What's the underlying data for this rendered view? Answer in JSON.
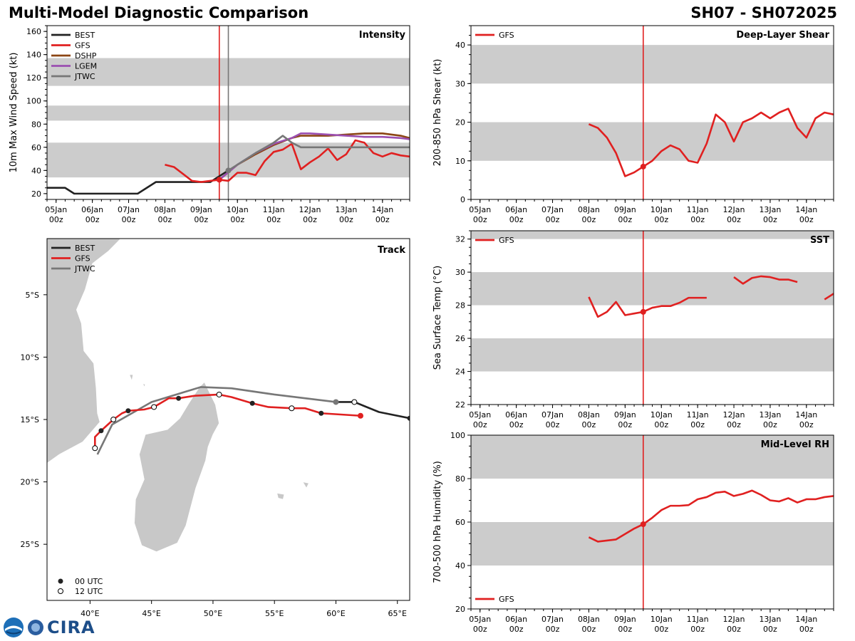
{
  "header": {
    "title": "Multi-Model Diagnostic Comparison",
    "storm_id": "SH07 - SH072025"
  },
  "colors": {
    "BEST": "#222222",
    "GFS": "#e02020",
    "DSHP": "#8b4513",
    "LGEM": "#9b4fb0",
    "JTWC": "#777777",
    "band": "#cccccc",
    "land": "#c8c8c8"
  },
  "logo": {
    "text": "CIRA",
    "icon": "noaa-logo-icon"
  },
  "time_ticks": [
    {
      "d": "05Jan",
      "h": "00z"
    },
    {
      "d": "06Jan",
      "h": "00z"
    },
    {
      "d": "07Jan",
      "h": "00z"
    },
    {
      "d": "08Jan",
      "h": "00z"
    },
    {
      "d": "09Jan",
      "h": "00z"
    },
    {
      "d": "10Jan",
      "h": "00z"
    },
    {
      "d": "11Jan",
      "h": "00z"
    },
    {
      "d": "12Jan",
      "h": "00z"
    },
    {
      "d": "13Jan",
      "h": "00z"
    },
    {
      "d": "14Jan",
      "h": "00z"
    }
  ],
  "chart_data": [
    {
      "id": "intensity",
      "type": "line",
      "title": "Intensity",
      "ylabel": "10m Max Wind Speed (kt)",
      "ylim": [
        15,
        165
      ],
      "yticks": [
        20,
        40,
        60,
        80,
        100,
        120,
        140,
        160
      ],
      "x_unit": "days since 05Jan 00z",
      "xlim": [
        -0.25,
        9.75
      ],
      "bands": [
        [
          34,
          64
        ],
        [
          83,
          96
        ],
        [
          113,
          137
        ]
      ],
      "vlines": [
        {
          "x": 4.5,
          "series": "GFS"
        },
        {
          "x": 4.75,
          "series": "JTWC"
        }
      ],
      "legend": [
        "BEST",
        "GFS",
        "DSHP",
        "LGEM",
        "JTWC"
      ],
      "series": [
        {
          "name": "BEST",
          "x": [
            -0.25,
            0.0,
            0.25,
            0.5,
            0.75,
            1,
            2,
            2.25,
            2.75,
            3,
            3.5,
            4,
            4.25,
            4.5,
            4.75
          ],
          "y": [
            25,
            25,
            25,
            20,
            20,
            20,
            20,
            20,
            30,
            30,
            30,
            30,
            30,
            35,
            40
          ]
        },
        {
          "name": "GFS",
          "x": [
            3.0,
            3.25,
            3.5,
            3.75,
            4.0,
            4.25,
            4.5,
            4.75,
            5.0,
            5.25,
            5.5,
            5.75,
            6.0,
            6.25,
            6.5,
            6.75,
            7.0,
            7.25,
            7.5,
            7.75,
            8.0,
            8.25,
            8.5,
            8.75,
            9.0,
            9.25,
            9.5,
            9.75
          ],
          "y": [
            45,
            43,
            37,
            31,
            30,
            31,
            32,
            31,
            38,
            38,
            36,
            48,
            56,
            58,
            63,
            41,
            47,
            52,
            59,
            49,
            54,
            66,
            64,
            55,
            52,
            55,
            53,
            52
          ]
        },
        {
          "name": "DSHP",
          "x": [
            4.5,
            5.0,
            5.5,
            6.0,
            6.25,
            6.5,
            6.75,
            7.0,
            7.5,
            8.0,
            8.5,
            9.0,
            9.5,
            9.75
          ],
          "y": [
            32,
            45,
            54,
            62,
            65,
            68,
            70,
            70,
            70,
            71,
            72,
            72,
            70,
            68
          ]
        },
        {
          "name": "LGEM",
          "x": [
            4.5,
            5.0,
            5.5,
            6.0,
            6.5,
            6.75,
            7.0,
            7.5,
            8.0,
            8.5,
            9.0,
            9.5,
            9.75
          ],
          "y": [
            32,
            45,
            55,
            63,
            68,
            72,
            72,
            71,
            70,
            69,
            69,
            68,
            67
          ]
        },
        {
          "name": "JTWC",
          "x": [
            4.75,
            5.0,
            5.5,
            6.0,
            6.25,
            6.5,
            6.75,
            7.0,
            9.75
          ],
          "y": [
            40,
            45,
            55,
            64,
            70,
            64,
            60,
            60,
            60
          ]
        }
      ]
    },
    {
      "id": "shear",
      "type": "line",
      "title": "Deep-Layer Shear",
      "ylabel": "200-850 hPa Shear (kt)",
      "ylim": [
        0,
        45
      ],
      "yticks": [
        0,
        10,
        20,
        30,
        40
      ],
      "xlim": [
        -0.25,
        9.75
      ],
      "bands": [
        [
          10,
          20
        ],
        [
          30,
          40
        ]
      ],
      "vlines": [
        {
          "x": 4.5,
          "series": "GFS"
        }
      ],
      "legend": [
        "GFS"
      ],
      "series": [
        {
          "name": "GFS",
          "x": [
            3.0,
            3.25,
            3.5,
            3.75,
            4.0,
            4.25,
            4.5,
            4.75,
            5.0,
            5.25,
            5.5,
            5.75,
            6.0,
            6.25,
            6.5,
            6.75,
            7.0,
            7.25,
            7.5,
            7.75,
            8.0,
            8.25,
            8.5,
            8.75,
            9.0,
            9.25,
            9.5,
            9.75
          ],
          "y": [
            19.5,
            18.5,
            16,
            12,
            6,
            7,
            8.5,
            10,
            12.5,
            14,
            13,
            10,
            9.5,
            14.5,
            22,
            20,
            15,
            20,
            21,
            22.5,
            21,
            22.5,
            23.5,
            18.5,
            16,
            21,
            22.5,
            22
          ]
        }
      ]
    },
    {
      "id": "track",
      "type": "scatter",
      "title": "Track",
      "xlim": [
        36.5,
        66
      ],
      "ylim": [
        -29.5,
        -0.5
      ],
      "xticks": [
        40,
        45,
        50,
        55,
        60,
        65
      ],
      "xtick_labels": [
        "40°E",
        "45°E",
        "50°E",
        "55°E",
        "60°E",
        "65°E"
      ],
      "yticks": [
        -5,
        -10,
        -15,
        -20,
        -25
      ],
      "ytick_labels": [
        "5°S",
        "10°S",
        "15°S",
        "20°S",
        "25°S"
      ],
      "legend": [
        "BEST",
        "GFS",
        "JTWC"
      ],
      "marker_legend": [
        "00 UTC",
        "12 UTC"
      ],
      "series": [
        {
          "name": "BEST",
          "lon": [
            60.0,
            61.5,
            63.5,
            66.0
          ],
          "lat": [
            -13.6,
            -13.6,
            -14.4,
            -14.9
          ]
        },
        {
          "name": "GFS",
          "lon": [
            62.0,
            58.8,
            57.5,
            56.4,
            54.5,
            53.2,
            51.5,
            50.5,
            48.5,
            47.2,
            46.4,
            45.2,
            44.4,
            43.1,
            42.6,
            41.9,
            40.9,
            40.4,
            40.4
          ],
          "lat": [
            -14.7,
            -14.5,
            -14.1,
            -14.1,
            -14.0,
            -13.7,
            -13.2,
            -13.0,
            -13.1,
            -13.3,
            -13.3,
            -14.0,
            -14.2,
            -14.3,
            -14.5,
            -15.0,
            -15.9,
            -16.4,
            -17.3
          ],
          "markers": [
            {
              "lon": 62.0,
              "lat": -14.7,
              "kind": "end"
            },
            {
              "lon": 58.8,
              "lat": -14.5,
              "kind": "00"
            },
            {
              "lon": 56.4,
              "lat": -14.1,
              "kind": "12"
            },
            {
              "lon": 53.2,
              "lat": -13.7,
              "kind": "00"
            },
            {
              "lon": 50.5,
              "lat": -13.0,
              "kind": "12"
            },
            {
              "lon": 47.2,
              "lat": -13.3,
              "kind": "00"
            },
            {
              "lon": 45.2,
              "lat": -14.0,
              "kind": "12"
            },
            {
              "lon": 43.1,
              "lat": -14.3,
              "kind": "00"
            },
            {
              "lon": 41.9,
              "lat": -15.0,
              "kind": "12"
            },
            {
              "lon": 40.9,
              "lat": -15.9,
              "kind": "00"
            },
            {
              "lon": 40.4,
              "lat": -17.3,
              "kind": "12"
            }
          ]
        },
        {
          "name": "JTWC",
          "lon": [
            60.0,
            55.0,
            51.5,
            49.0,
            45.0,
            41.8,
            40.6
          ],
          "lat": [
            -13.6,
            -13.0,
            -12.5,
            -12.4,
            -13.6,
            -15.4,
            -17.8
          ],
          "markers": [
            {
              "lon": 60.0,
              "lat": -13.6,
              "kind": "start"
            }
          ]
        }
      ]
    },
    {
      "id": "sst",
      "type": "line",
      "title": "SST",
      "ylabel": "Sea Surface Temp (°C)",
      "ylim": [
        22,
        32.5
      ],
      "yticks": [
        22,
        24,
        26,
        28,
        30,
        32
      ],
      "xlim": [
        -0.25,
        9.75
      ],
      "bands": [
        [
          24,
          26
        ],
        [
          28,
          30
        ],
        [
          32,
          32.5
        ]
      ],
      "vlines": [
        {
          "x": 4.5,
          "series": "GFS"
        }
      ],
      "legend": [
        "GFS"
      ],
      "series": [
        {
          "name": "GFS",
          "segments": [
            {
              "x": [
                3.0,
                3.25,
                3.5,
                3.75,
                4.0,
                4.25,
                4.5,
                4.75,
                5.0,
                5.25,
                5.5,
                5.75,
                6.0,
                6.25
              ],
              "y": [
                28.5,
                27.3,
                27.6,
                28.2,
                27.4,
                27.5,
                27.6,
                27.85,
                27.95,
                27.95,
                28.15,
                28.45,
                28.45,
                28.45
              ]
            },
            {
              "x": [
                7.0,
                7.25,
                7.5,
                7.75,
                8.0,
                8.25,
                8.5,
                8.75
              ],
              "y": [
                29.7,
                29.3,
                29.65,
                29.75,
                29.7,
                29.55,
                29.55,
                29.4
              ]
            },
            {
              "x": [
                9.5,
                9.75
              ],
              "y": [
                28.35,
                28.7
              ]
            }
          ]
        }
      ]
    },
    {
      "id": "rh",
      "type": "line",
      "title": "Mid-Level RH",
      "ylabel": "700-500 hPa Humidity (%)",
      "ylim": [
        20,
        100
      ],
      "yticks": [
        20,
        40,
        60,
        80,
        100
      ],
      "xlim": [
        -0.25,
        9.75
      ],
      "bands": [
        [
          40,
          60
        ],
        [
          80,
          100
        ]
      ],
      "vlines": [
        {
          "x": 4.5,
          "series": "GFS"
        }
      ],
      "legend": [
        "GFS"
      ],
      "series": [
        {
          "name": "GFS",
          "x": [
            3.0,
            3.25,
            3.5,
            3.75,
            4.0,
            4.25,
            4.5,
            4.75,
            5.0,
            5.25,
            5.5,
            5.75,
            6.0,
            6.25,
            6.5,
            6.75,
            7.0,
            7.25,
            7.5,
            7.75,
            8.0,
            8.25,
            8.5,
            8.75,
            9.0,
            9.25,
            9.5,
            9.75
          ],
          "y": [
            53,
            51,
            51.5,
            52,
            54.5,
            57,
            59,
            62,
            65.5,
            67.5,
            67.5,
            67.8,
            70.5,
            71.5,
            73.5,
            74,
            72,
            73,
            74.5,
            72.5,
            70,
            69.5,
            71,
            69,
            70.5,
            70.5,
            71.5,
            72
          ]
        }
      ]
    }
  ]
}
